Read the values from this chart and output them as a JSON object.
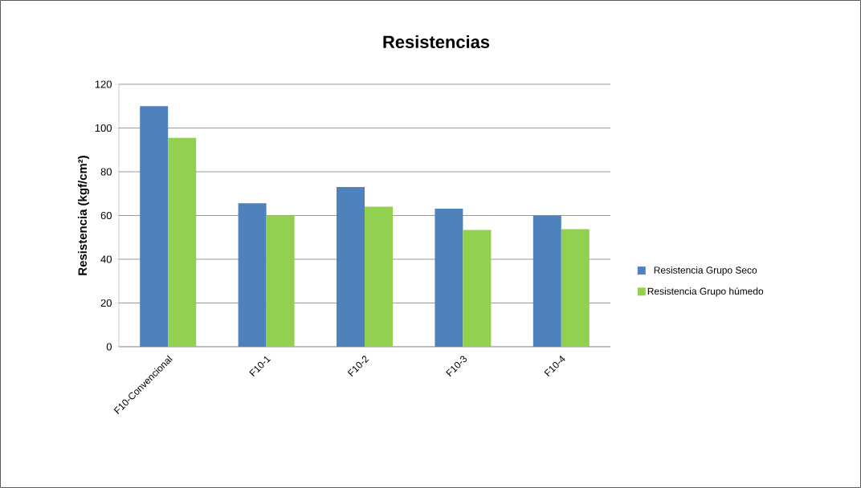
{
  "chart_data": {
    "type": "bar",
    "title": "Resistencias",
    "ylabel": "Resistencia (kgf/cm²)",
    "categories": [
      "F10-Convencional",
      "F10-1",
      "F10-2",
      "F10-3",
      "F10-4"
    ],
    "series": [
      {
        "name": "Resistencia Grupo Seco",
        "color": "#4f81bd",
        "values": [
          110,
          65.6,
          73,
          63.1,
          60
        ]
      },
      {
        "name": "Resistencia Grupo húmedo",
        "color": "#92d050",
        "values": [
          95.5,
          60,
          64,
          53.4,
          53.8
        ]
      }
    ],
    "ylim": [
      0,
      120
    ],
    "yticks": [
      0,
      20,
      40,
      60,
      80,
      100,
      120
    ],
    "grid": "y",
    "legend": "right"
  }
}
